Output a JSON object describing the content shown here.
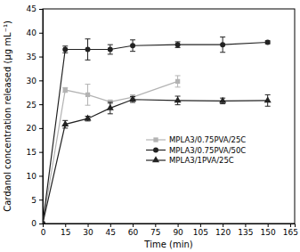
{
  "chart_data": {
    "type": "line",
    "x_label": "Time (min)",
    "y_label": "Cardanol concentration released (μg mL⁻¹)",
    "x": [
      0,
      15,
      30,
      45,
      60,
      90,
      120,
      150
    ],
    "xlim": [
      0,
      168
    ],
    "xticks": [
      0,
      15,
      30,
      45,
      60,
      75,
      90,
      105,
      120,
      135,
      150,
      165
    ],
    "ylim": [
      0,
      45
    ],
    "yticks": [
      0,
      5,
      10,
      15,
      20,
      25,
      30,
      35,
      40,
      45
    ],
    "legend": "right",
    "series": [
      {
        "name": "MPLA3/0.75PVA/25C",
        "color": "#b3b3b3",
        "marker": "square",
        "values": [
          0,
          28,
          27,
          25.5,
          26.5,
          29.8,
          null,
          null
        ],
        "errors": [
          0,
          0.5,
          2.2,
          0.3,
          0.5,
          1.2,
          null,
          null
        ]
      },
      {
        "name": "MPLA3/0.75PVA/50C",
        "color": "#222222",
        "marker": "circle",
        "values": [
          0,
          36.5,
          36.5,
          36.5,
          37.3,
          37.5,
          37.5,
          38
        ],
        "errors": [
          0,
          0.7,
          2.2,
          1.0,
          1.2,
          0.6,
          1.6,
          0.3
        ]
      },
      {
        "name": "MPLA3/1PVA/25C",
        "color": "#222222",
        "marker": "triangle",
        "values": [
          0,
          20.8,
          22,
          24.2,
          26,
          25.8,
          25.7,
          25.8
        ],
        "errors": [
          0,
          0.8,
          0.5,
          1.2,
          0.6,
          0.9,
          0.6,
          1.2
        ]
      }
    ]
  }
}
